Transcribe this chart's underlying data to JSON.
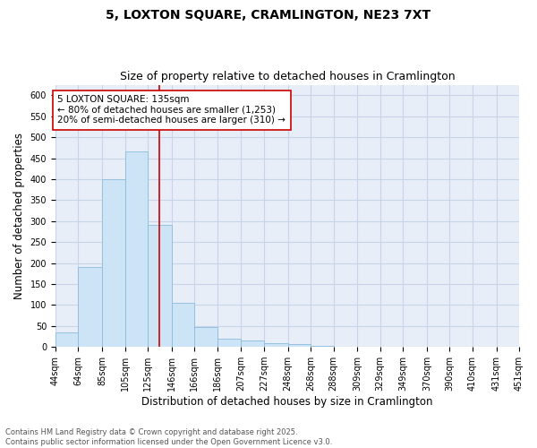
{
  "title_line1": "5, LOXTON SQUARE, CRAMLINGTON, NE23 7XT",
  "title_line2": "Size of property relative to detached houses in Cramlington",
  "xlabel": "Distribution of detached houses by size in Cramlington",
  "ylabel": "Number of detached properties",
  "bar_color": "#cce4f5",
  "bar_edge_color": "#8bbcdc",
  "grid_color": "#c8d4e8",
  "background_color": "#e8eef8",
  "vline_x": 135,
  "vline_color": "#cc0000",
  "annotation_line1": "5 LOXTON SQUARE: 135sqm",
  "annotation_line2": "← 80% of detached houses are smaller (1,253)",
  "annotation_line3": "20% of semi-detached houses are larger (310) →",
  "annotation_box_color": "#ffffff",
  "annotation_box_edge": "#cc0000",
  "footnote": "Contains HM Land Registry data © Crown copyright and database right 2025.\nContains public sector information licensed under the Open Government Licence v3.0.",
  "bin_edges": [
    44,
    64,
    85,
    105,
    125,
    146,
    166,
    186,
    207,
    227,
    248,
    268,
    288,
    309,
    329,
    349,
    370,
    390,
    410,
    431,
    451
  ],
  "bar_heights": [
    35,
    190,
    400,
    465,
    290,
    105,
    48,
    20,
    15,
    8,
    6,
    2,
    1,
    0,
    1,
    0,
    1,
    0,
    0,
    1
  ],
  "ylim": [
    0,
    625
  ],
  "yticks": [
    0,
    50,
    100,
    150,
    200,
    250,
    300,
    350,
    400,
    450,
    500,
    550,
    600
  ],
  "title_fontsize": 10,
  "subtitle_fontsize": 9,
  "tick_fontsize": 7,
  "label_fontsize": 8.5,
  "footnote_fontsize": 6
}
